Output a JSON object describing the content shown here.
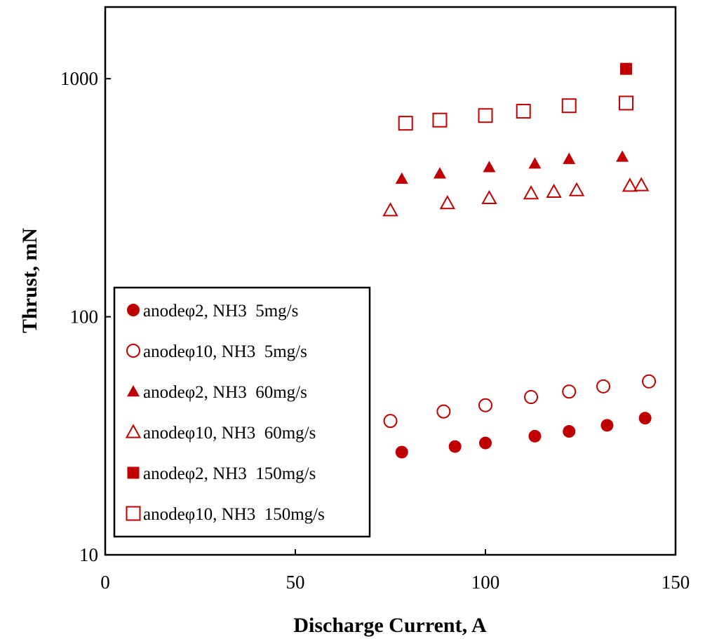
{
  "chart_data": {
    "type": "scatter",
    "xlabel": "Discharge Current, A",
    "ylabel": "Thrust, mN",
    "xlim": [
      0,
      150
    ],
    "ylim": [
      10,
      2000
    ],
    "yscale": "log",
    "grid": false,
    "legend_position": "bottom-left",
    "x_ticks": [
      "0",
      "50",
      "100",
      "150"
    ],
    "y_ticks": [
      "10",
      "100",
      "1000"
    ],
    "color": "#c00000",
    "series": [
      {
        "name": "anodeφ2, NH3  5mg/s",
        "marker": "circle-filled",
        "x": [
          78,
          92,
          100,
          113,
          122,
          132,
          142
        ],
        "y": [
          27,
          28.5,
          29.5,
          31.5,
          33,
          35,
          37.5
        ]
      },
      {
        "name": "anodeφ10, NH3  5mg/s",
        "marker": "circle-open",
        "x": [
          75,
          89,
          100,
          112,
          122,
          131,
          143
        ],
        "y": [
          36.5,
          40,
          42.5,
          46,
          48.5,
          51,
          53.5
        ]
      },
      {
        "name": "anodeφ2, NH3  60mg/s",
        "marker": "triangle-filled",
        "x": [
          78,
          88,
          101,
          113,
          122,
          136
        ],
        "y": [
          380,
          400,
          425,
          440,
          460,
          470
        ]
      },
      {
        "name": "anodeφ10, NH3  60mg/s",
        "marker": "triangle-open",
        "x": [
          75,
          90,
          101,
          112,
          118,
          124,
          138,
          141
        ],
        "y": [
          280,
          300,
          315,
          330,
          335,
          340,
          355,
          357
        ]
      },
      {
        "name": "anodeφ2, NH3  150mg/s",
        "marker": "square-filled",
        "x": [
          137
        ],
        "y": [
          1100
        ]
      },
      {
        "name": "anodeφ10, NH3  150mg/s",
        "marker": "square-open",
        "x": [
          79,
          88,
          100,
          110,
          122,
          137
        ],
        "y": [
          650,
          670,
          700,
          730,
          770,
          790
        ]
      }
    ]
  }
}
